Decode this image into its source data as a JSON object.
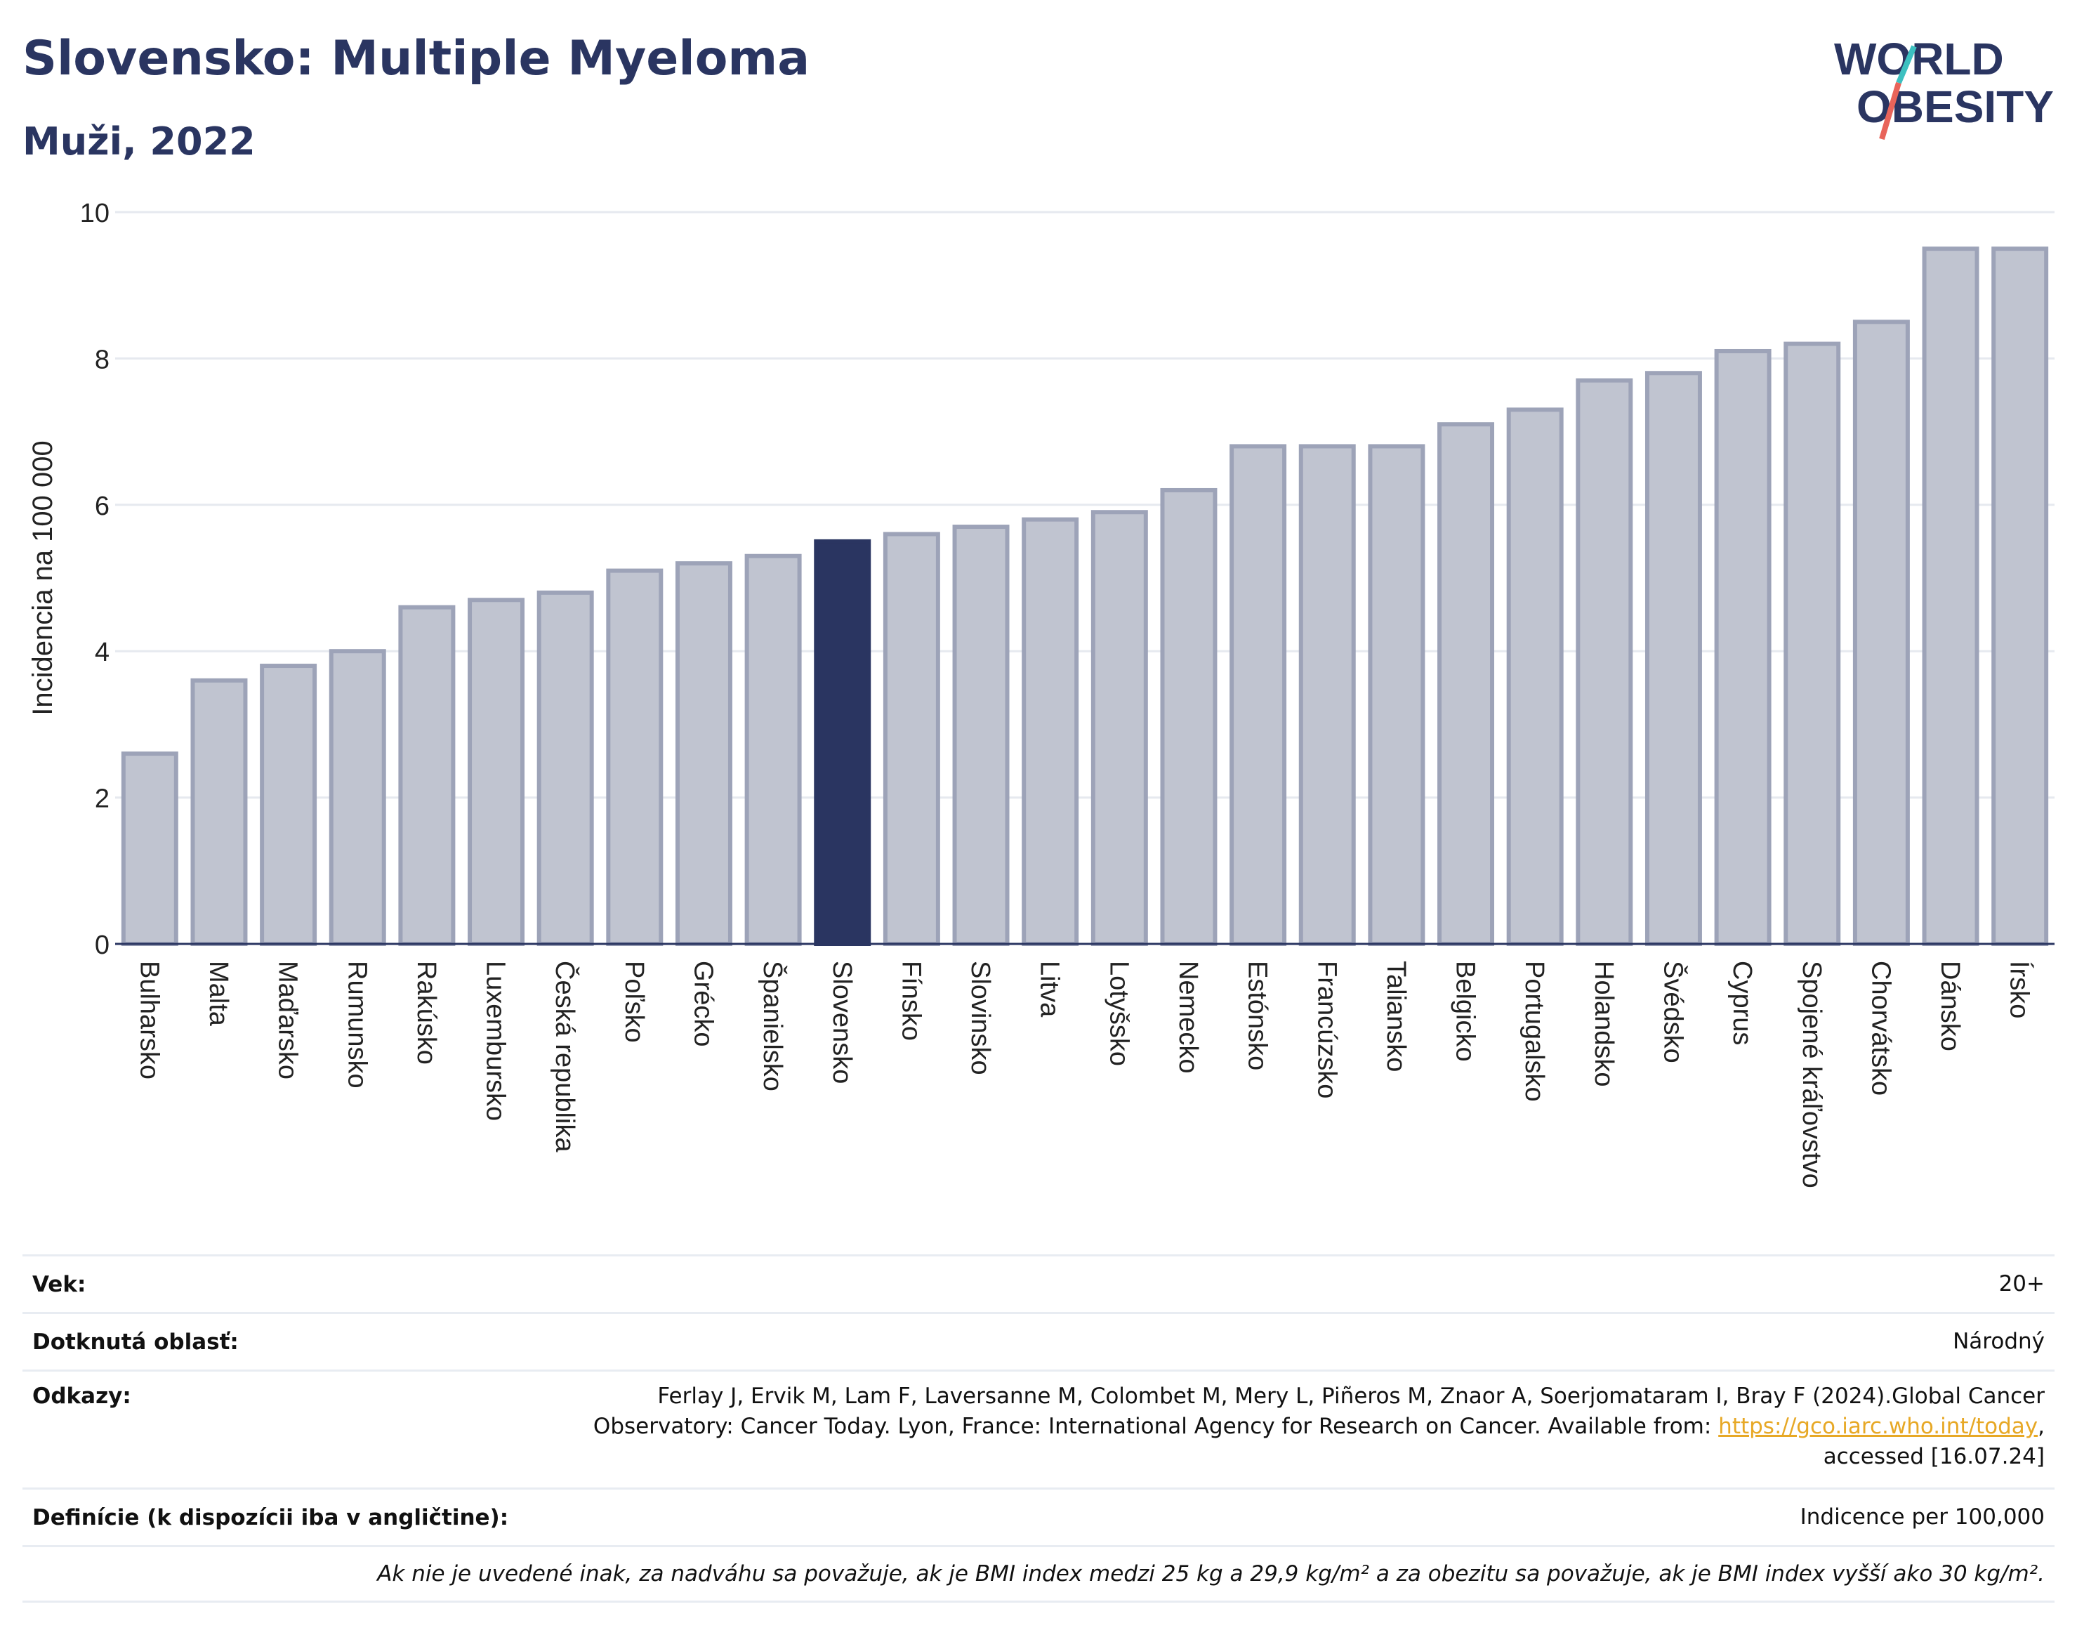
{
  "header": {
    "title": "Slovensko: Multiple Myeloma",
    "subtitle": "Muži, 2022"
  },
  "logo": {
    "line1": "WORLD",
    "line2": "OBESITY",
    "colors": {
      "text": "#2a3561",
      "slash_teal": "#3cc0c0",
      "slash_red": "#e8645a"
    }
  },
  "chart_data": {
    "type": "bar",
    "ylabel": "Incidencia na 100 000",
    "xlabel": "",
    "ylim": [
      0,
      10
    ],
    "yticks": [
      0,
      2,
      4,
      6,
      8,
      10
    ],
    "grid": true,
    "highlight": "Slovensko",
    "colors": {
      "bar": "#c0c4d0",
      "bar_edge": "#9da3b8",
      "highlight": "#2a3561"
    },
    "categories": [
      "Bulharsko",
      "Malta",
      "Maďarsko",
      "Rumunsko",
      "Rakúsko",
      "Luxembursko",
      "Česká republika",
      "Poľsko",
      "Grécko",
      "Španielsko",
      "Slovensko",
      "Fínsko",
      "Slovinsko",
      "Litva",
      "Lotyšsko",
      "Nemecko",
      "Estónsko",
      "Francúzsko",
      "Taliansko",
      "Belgicko",
      "Portugalsko",
      "Holandsko",
      "Švédsko",
      "Cyprus",
      "Spojené kráľovstvo",
      "Chorvátsko",
      "Dánsko",
      "Írsko"
    ],
    "values": [
      2.6,
      3.6,
      3.8,
      4.0,
      4.6,
      4.7,
      4.8,
      5.1,
      5.2,
      5.3,
      5.5,
      5.6,
      5.7,
      5.8,
      5.9,
      6.2,
      6.8,
      6.8,
      6.8,
      7.1,
      7.3,
      7.7,
      7.8,
      8.1,
      8.2,
      8.5,
      9.5,
      9.5
    ]
  },
  "info": {
    "age_label": "Vek:",
    "age_value": "20+",
    "area_label": "Dotknutá oblasť:",
    "area_value": "Národný",
    "refs_label": "Odkazy:",
    "refs_line1": "Ferlay J, Ervik M, Lam F, Laversanne M, Colombet M, Mery L, Piñeros M, Znaor A, Soerjomataram I, Bray F (2024).Global Cancer",
    "refs_line2": "Observatory: Cancer Today. Lyon, France: International Agency for Research on Cancer. Available from: ",
    "refs_link": "https://gco.iarc.who.int/today",
    "refs_after_link": ",",
    "refs_line3": "accessed [16.07.24]",
    "def_label": "Definície (k dispozícii iba v angličtine):",
    "def_value": "Indicence per 100,000",
    "note": "Ak nie je uvedené inak, za nadváhu sa považuje, ak je BMI index medzi 25 kg a 29,9 kg/m² a za obezitu sa považuje, ak je BMI index vyšší ako 30 kg/m²."
  }
}
